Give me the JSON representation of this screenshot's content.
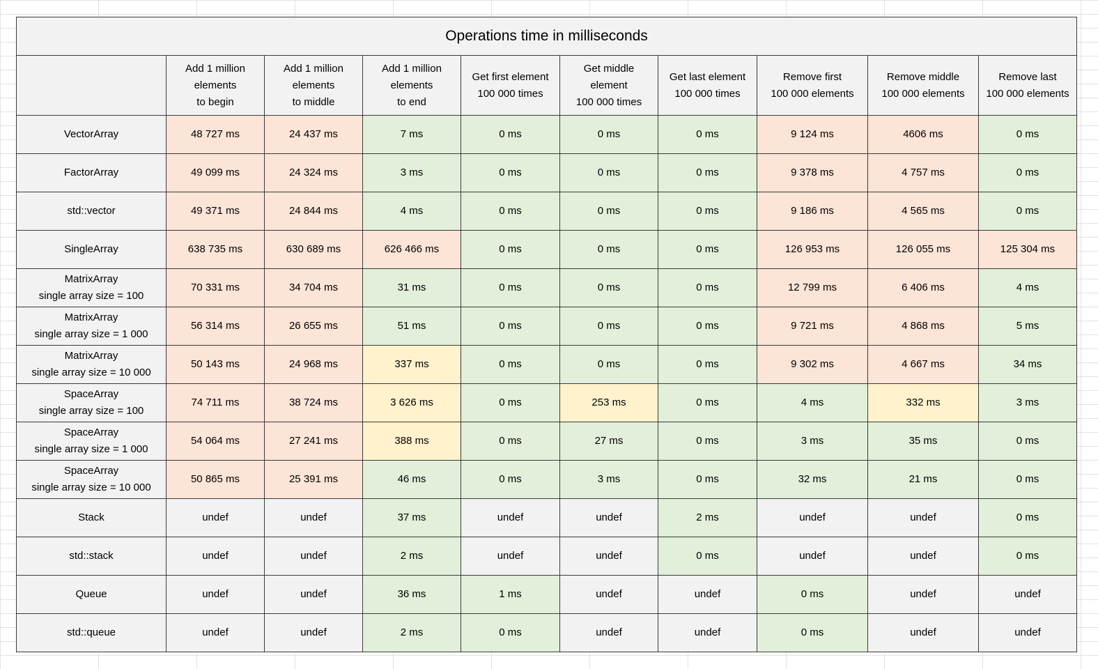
{
  "title": "Operations time in milliseconds",
  "colors": {
    "slow": "#fce4d6",
    "fast": "#e2efda",
    "medium": "#fff2cc",
    "neutral": "#f2f2f2"
  },
  "columns": [
    [
      "Add 1 million",
      "elements",
      "to begin"
    ],
    [
      "Add 1 million",
      "elements",
      "to middle"
    ],
    [
      "Add 1 million",
      "elements",
      "to end"
    ],
    [
      "Get first element",
      "100 000 times"
    ],
    [
      "Get middle",
      "element",
      "100 000 times"
    ],
    [
      "Get last element",
      "100 000 times"
    ],
    [
      "Remove first",
      "100 000 elements"
    ],
    [
      "Remove middle",
      "100 000 elements"
    ],
    [
      "Remove last",
      "100 000 elements"
    ]
  ],
  "rows": [
    {
      "label": [
        "VectorArray"
      ],
      "values": [
        "48 727 ms",
        "24 437 ms",
        "7 ms",
        "0 ms",
        "0 ms",
        "0 ms",
        "9 124 ms",
        "4606 ms",
        "0 ms"
      ],
      "status": [
        "slow",
        "slow",
        "fast",
        "fast",
        "fast",
        "fast",
        "slow",
        "slow",
        "fast"
      ]
    },
    {
      "label": [
        "FactorArray"
      ],
      "values": [
        "49 099 ms",
        "24 324 ms",
        "3 ms",
        "0 ms",
        "0 ms",
        "0 ms",
        "9 378 ms",
        "4 757 ms",
        "0 ms"
      ],
      "status": [
        "slow",
        "slow",
        "fast",
        "fast",
        "fast",
        "fast",
        "slow",
        "slow",
        "fast"
      ]
    },
    {
      "label": [
        "std::vector"
      ],
      "values": [
        "49 371 ms",
        "24 844 ms",
        "4 ms",
        "0 ms",
        "0 ms",
        "0 ms",
        "9 186 ms",
        "4 565 ms",
        "0 ms"
      ],
      "status": [
        "slow",
        "slow",
        "fast",
        "fast",
        "fast",
        "fast",
        "slow",
        "slow",
        "fast"
      ]
    },
    {
      "label": [
        "SingleArray"
      ],
      "values": [
        "638 735 ms",
        "630 689 ms",
        "626 466 ms",
        "0 ms",
        "0 ms",
        "0 ms",
        "126 953 ms",
        "126 055 ms",
        "125 304 ms"
      ],
      "status": [
        "slow",
        "slow",
        "slow",
        "fast",
        "fast",
        "fast",
        "slow",
        "slow",
        "slow"
      ]
    },
    {
      "label": [
        "MatrixArray",
        "single array size = 100"
      ],
      "values": [
        "70 331 ms",
        "34 704 ms",
        "31 ms",
        "0 ms",
        "0 ms",
        "0 ms",
        "12 799 ms",
        "6 406 ms",
        "4 ms"
      ],
      "status": [
        "slow",
        "slow",
        "fast",
        "fast",
        "fast",
        "fast",
        "slow",
        "slow",
        "fast"
      ]
    },
    {
      "label": [
        "MatrixArray",
        "single array size = 1 000"
      ],
      "values": [
        "56 314 ms",
        "26 655 ms",
        "51 ms",
        "0 ms",
        "0 ms",
        "0 ms",
        "9 721 ms",
        "4 868 ms",
        "5 ms"
      ],
      "status": [
        "slow",
        "slow",
        "fast",
        "fast",
        "fast",
        "fast",
        "slow",
        "slow",
        "fast"
      ]
    },
    {
      "label": [
        "MatrixArray",
        "single array size = 10 000"
      ],
      "values": [
        "50 143 ms",
        "24 968 ms",
        "337 ms",
        "0 ms",
        "0 ms",
        "0 ms",
        "9 302 ms",
        "4 667 ms",
        "34 ms"
      ],
      "status": [
        "slow",
        "slow",
        "medium",
        "fast",
        "fast",
        "fast",
        "slow",
        "slow",
        "fast"
      ]
    },
    {
      "label": [
        "SpaceArray",
        "single array size = 100"
      ],
      "values": [
        "74 711 ms",
        "38 724 ms",
        "3 626 ms",
        "0 ms",
        "253 ms",
        "0 ms",
        "4 ms",
        "332 ms",
        "3 ms"
      ],
      "status": [
        "slow",
        "slow",
        "medium",
        "fast",
        "medium",
        "fast",
        "fast",
        "medium",
        "fast"
      ]
    },
    {
      "label": [
        "SpaceArray",
        "single array size = 1 000"
      ],
      "values": [
        "54 064 ms",
        "27 241 ms",
        "388 ms",
        "0 ms",
        "27 ms",
        "0 ms",
        "3 ms",
        "35 ms",
        "0 ms"
      ],
      "status": [
        "slow",
        "slow",
        "medium",
        "fast",
        "fast",
        "fast",
        "fast",
        "fast",
        "fast"
      ]
    },
    {
      "label": [
        "SpaceArray",
        "single array size = 10 000"
      ],
      "values": [
        "50 865 ms",
        "25 391 ms",
        "46 ms",
        "0 ms",
        "3 ms",
        "0 ms",
        "32 ms",
        "21 ms",
        "0 ms"
      ],
      "status": [
        "slow",
        "slow",
        "fast",
        "fast",
        "fast",
        "fast",
        "fast",
        "fast",
        "fast"
      ]
    },
    {
      "label": [
        "Stack"
      ],
      "values": [
        "undef",
        "undef",
        "37 ms",
        "undef",
        "undef",
        "2 ms",
        "undef",
        "undef",
        "0 ms"
      ],
      "status": [
        "neutral",
        "neutral",
        "fast",
        "neutral",
        "neutral",
        "fast",
        "neutral",
        "neutral",
        "fast"
      ]
    },
    {
      "label": [
        "std::stack"
      ],
      "values": [
        "undef",
        "undef",
        "2 ms",
        "undef",
        "undef",
        "0 ms",
        "undef",
        "undef",
        "0 ms"
      ],
      "status": [
        "neutral",
        "neutral",
        "fast",
        "neutral",
        "neutral",
        "fast",
        "neutral",
        "neutral",
        "fast"
      ]
    },
    {
      "label": [
        "Queue"
      ],
      "values": [
        "undef",
        "undef",
        "36 ms",
        "1 ms",
        "undef",
        "undef",
        "0 ms",
        "undef",
        "undef"
      ],
      "status": [
        "neutral",
        "neutral",
        "fast",
        "fast",
        "neutral",
        "neutral",
        "fast",
        "neutral",
        "neutral"
      ]
    },
    {
      "label": [
        "std::queue"
      ],
      "values": [
        "undef",
        "undef",
        "2 ms",
        "0 ms",
        "undef",
        "undef",
        "0 ms",
        "undef",
        "undef"
      ],
      "status": [
        "neutral",
        "neutral",
        "fast",
        "fast",
        "neutral",
        "neutral",
        "fast",
        "neutral",
        "neutral"
      ]
    }
  ]
}
